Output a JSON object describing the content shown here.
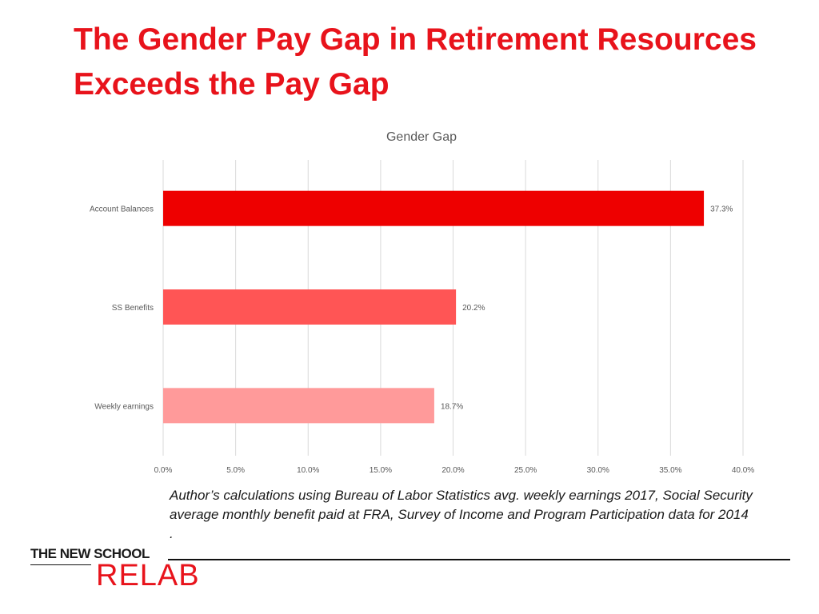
{
  "slide": {
    "title_line1": "The Gender Pay Gap in Retirement Resources",
    "title_line2": "Exceeds the Pay Gap",
    "caption": "Author’s calculations using Bureau of Labor Statistics avg. weekly earnings 2017, Social Security average monthly benefit paid at FRA, Survey of Income and Program Participation data for 2014 .",
    "logo_top": "THE NEW SCHOOL",
    "logo_bottom": "RELAB"
  },
  "colors": {
    "title": "#e8131b",
    "bars": [
      "#ee0000",
      "#ff5555",
      "#ff9a9a"
    ],
    "grid": "#d9d9d9",
    "tick_text": "#595959"
  },
  "chart_data": {
    "type": "bar",
    "orientation": "horizontal",
    "title": "Gender Gap",
    "categories": [
      "Account Balances",
      "SS Benefits",
      "Weekly earnings"
    ],
    "values": [
      37.3,
      20.2,
      18.7
    ],
    "value_labels": [
      "37.3%",
      "20.2%",
      "18.7%"
    ],
    "xlim": [
      0,
      40
    ],
    "x_ticks": [
      0,
      5,
      10,
      15,
      20,
      25,
      30,
      35,
      40
    ],
    "x_tick_labels": [
      "0.0%",
      "5.0%",
      "10.0%",
      "15.0%",
      "20.0%",
      "25.0%",
      "30.0%",
      "35.0%",
      "40.0%"
    ],
    "grid": "vertical",
    "legend": "none",
    "xlabel": "",
    "ylabel": ""
  }
}
